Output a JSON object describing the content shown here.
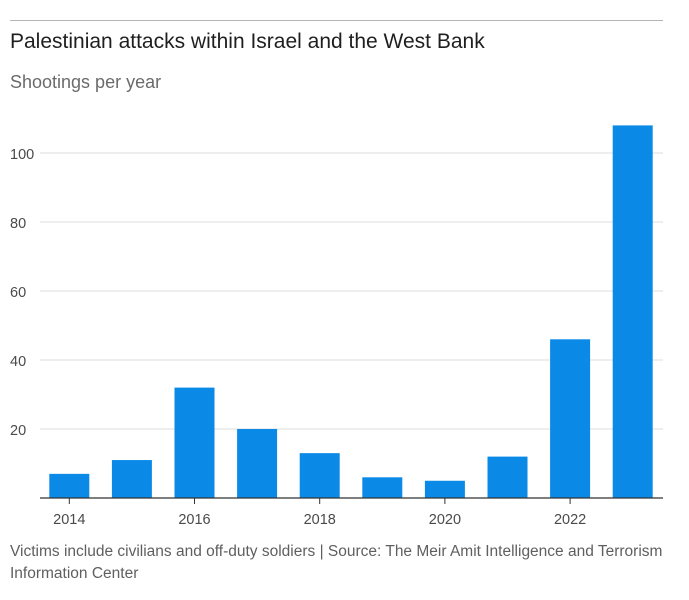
{
  "title": "Palestinian attacks within Israel and the West Bank",
  "subtitle": "Shootings per year",
  "footnote": "Victims include civilians and off-duty soldiers | Source: The Meir Amit Intelligence and Terrorism Information Center",
  "colors": {
    "bar": "#0a8ae6",
    "grid": "#dddddd",
    "axis": "#333333",
    "tick_text": "#4a4a4a"
  },
  "chart_data": {
    "type": "bar",
    "title": "Palestinian attacks within Israel and the West Bank",
    "subtitle": "Shootings per year",
    "xlabel": "",
    "ylabel": "Shootings per year",
    "categories": [
      "2014",
      "2015",
      "2016",
      "2017",
      "2018",
      "2019",
      "2020",
      "2021",
      "2022",
      "2023"
    ],
    "values": [
      7,
      11,
      32,
      20,
      13,
      6,
      5,
      12,
      46,
      108
    ],
    "x_tick_labels": [
      "2014",
      "2016",
      "2018",
      "2020",
      "2022"
    ],
    "y_ticks": [
      20,
      40,
      60,
      80,
      100
    ],
    "ylim": [
      0,
      110
    ],
    "grid": true,
    "legend": "none"
  }
}
